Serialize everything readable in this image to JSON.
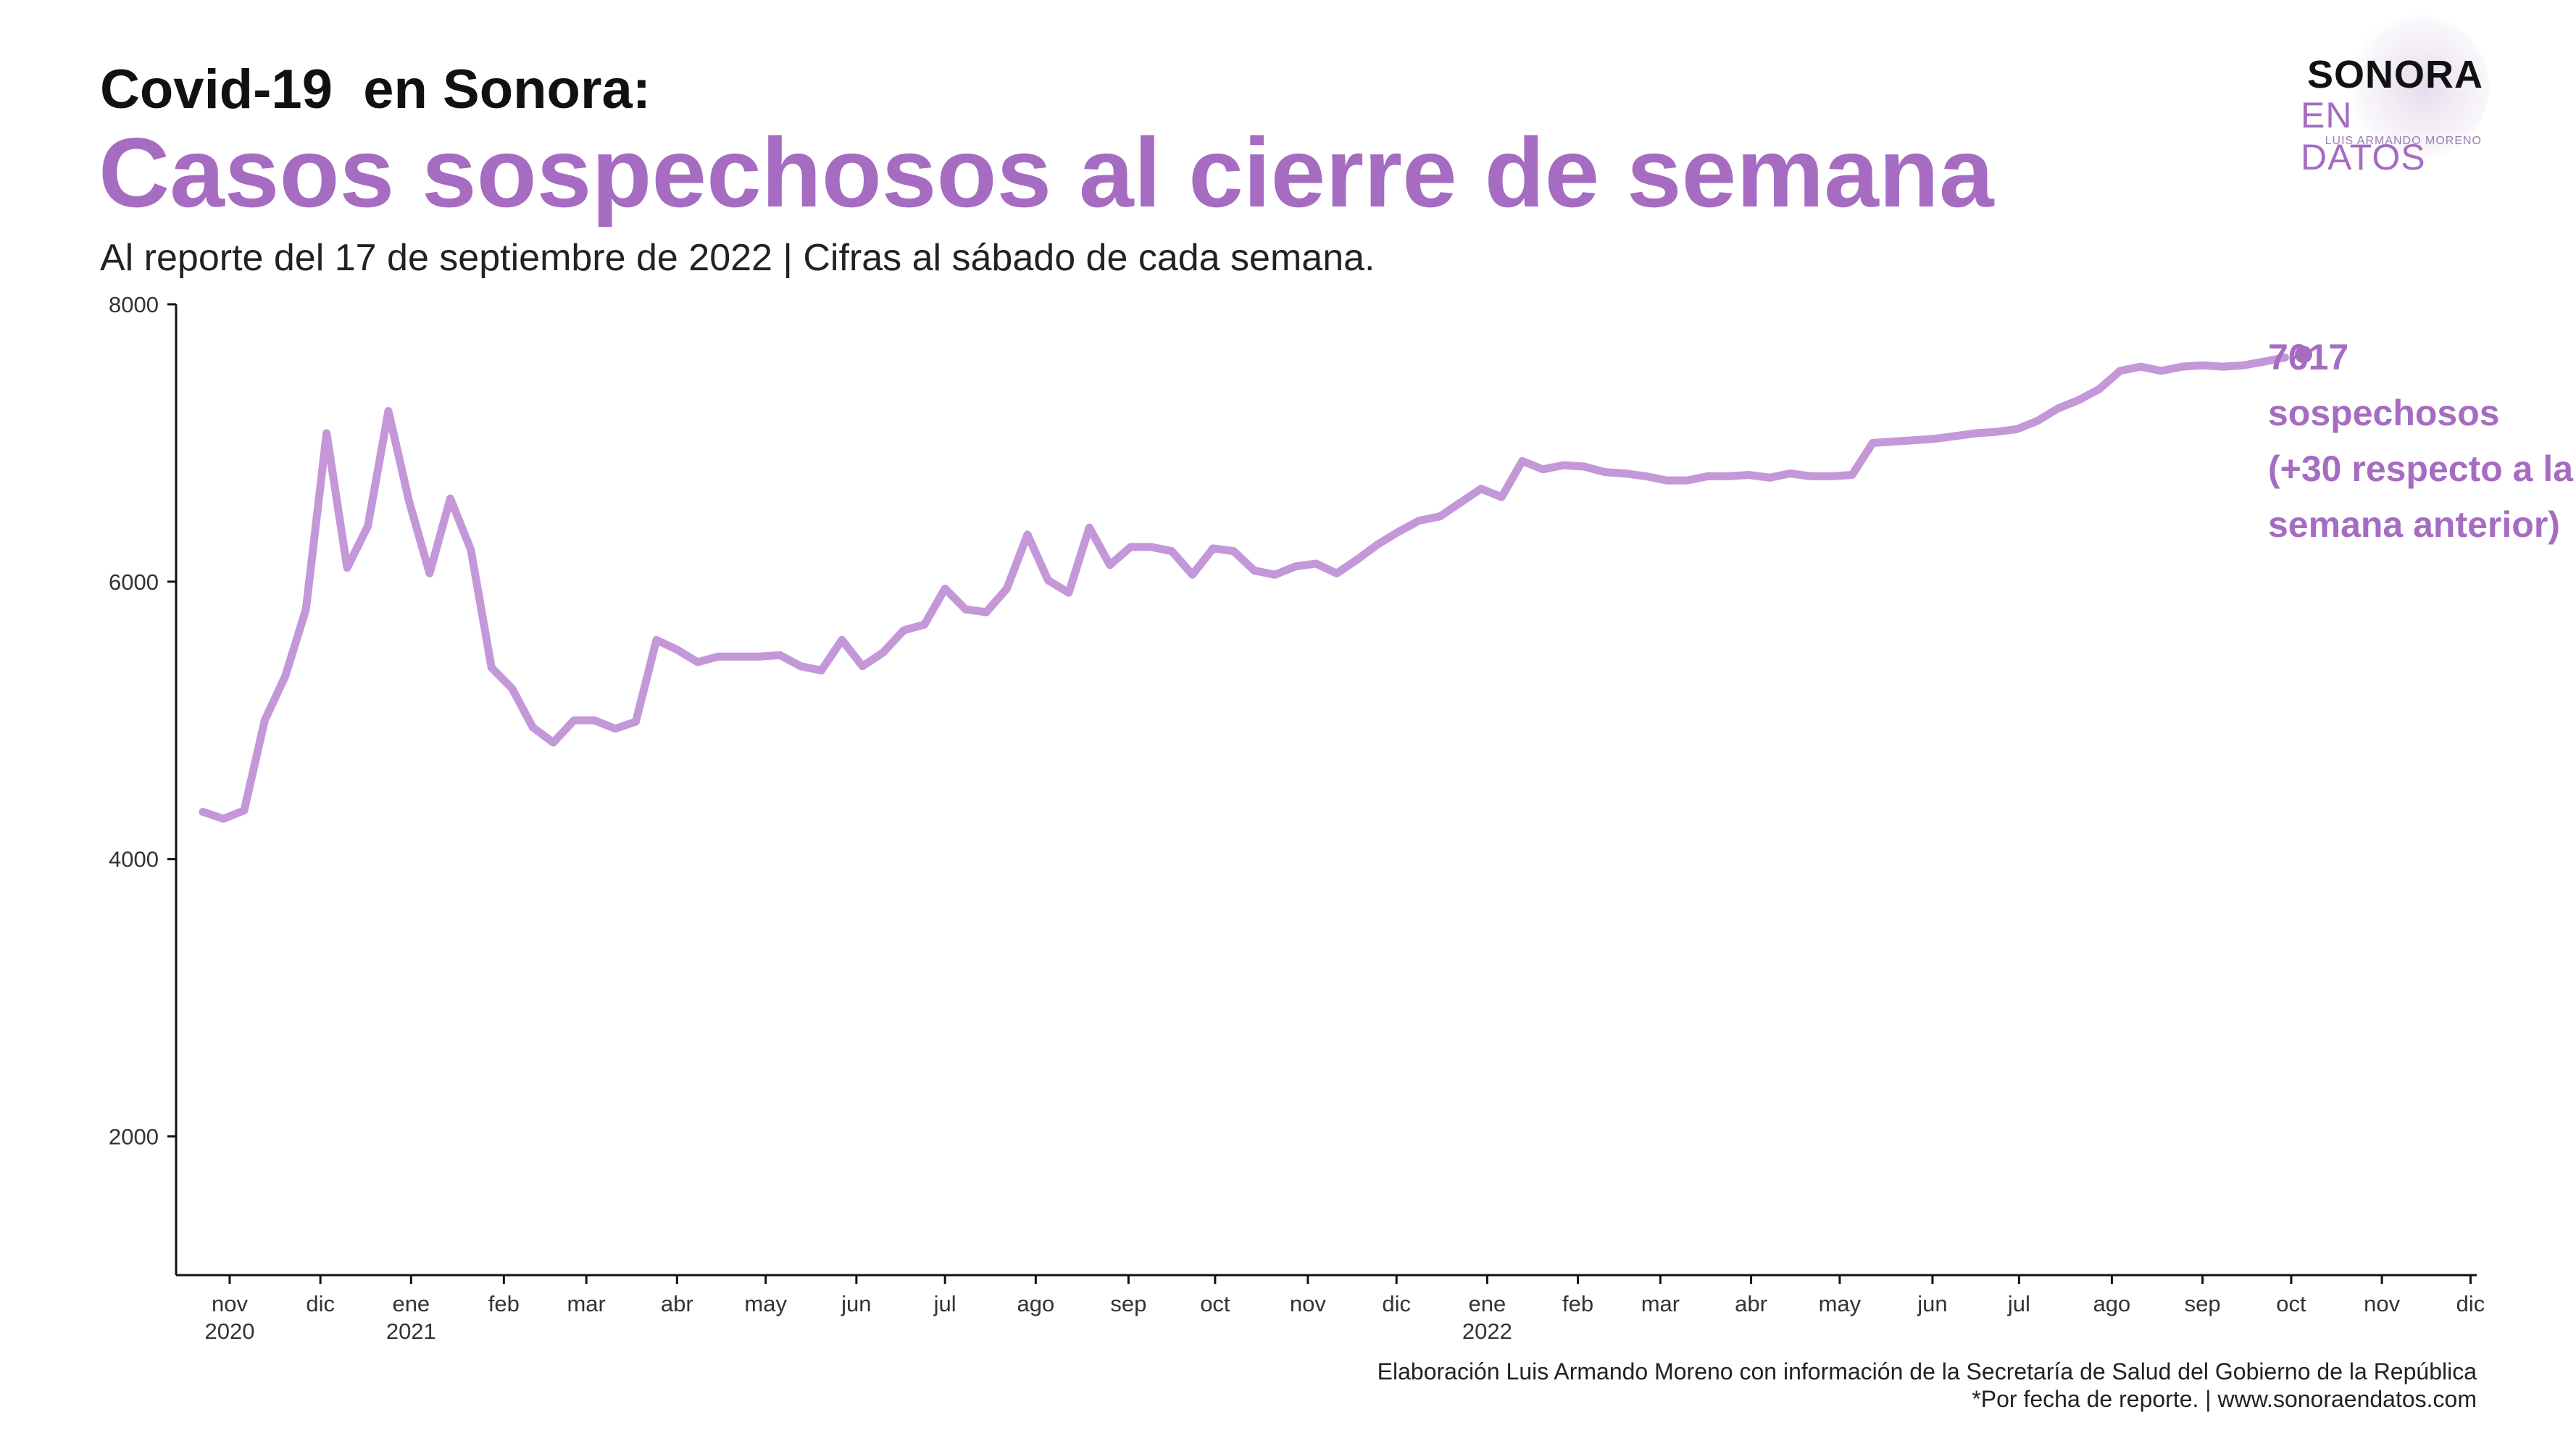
{
  "header": {
    "title_small": "Covid-19  en Sonora:",
    "title_big": "Casos sospechosos al cierre de semana",
    "subtitle": "Al reporte del 17 de septiembre de 2022  | Cifras al sábado de cada semana."
  },
  "logo": {
    "line1": "SONORA",
    "line2": "EN DATOS",
    "line3": "LUIS ARMANDO MORENO"
  },
  "footer": {
    "source_line1": "Elaboración Luis Armando Moreno con información de la Secretaría de Salud del Gobierno de la República",
    "source_line2": "*Por fecha de reporte. | www.sonoraendatos.com"
  },
  "colors": {
    "line": "#c397d8",
    "accent": "#a56cc1",
    "axis": "#111111"
  },
  "chart_data": {
    "type": "line",
    "title": "Casos sospechosos al cierre de semana",
    "xlabel": "",
    "ylabel": "",
    "ylim": [
      1000,
      8000
    ],
    "yticks": [
      2000,
      4000,
      6000,
      8000
    ],
    "xlim_week": [
      -1.3,
      110.3
    ],
    "xticks": [
      {
        "week": 1.3,
        "label": "nov",
        "year": "2020"
      },
      {
        "week": 5.7,
        "label": "dic",
        "year": ""
      },
      {
        "week": 10.1,
        "label": "ene",
        "year": "2021"
      },
      {
        "week": 14.6,
        "label": "feb",
        "year": ""
      },
      {
        "week": 18.6,
        "label": "mar",
        "year": ""
      },
      {
        "week": 23.0,
        "label": "abr",
        "year": ""
      },
      {
        "week": 27.3,
        "label": "may",
        "year": ""
      },
      {
        "week": 31.7,
        "label": "jun",
        "year": ""
      },
      {
        "week": 36.0,
        "label": "jul",
        "year": ""
      },
      {
        "week": 40.4,
        "label": "ago",
        "year": ""
      },
      {
        "week": 44.9,
        "label": "sep",
        "year": ""
      },
      {
        "week": 49.1,
        "label": "oct",
        "year": ""
      },
      {
        "week": 53.6,
        "label": "nov",
        "year": ""
      },
      {
        "week": 57.9,
        "label": "dic",
        "year": ""
      },
      {
        "week": 62.3,
        "label": "ene",
        "year": "2022"
      },
      {
        "week": 66.7,
        "label": "feb",
        "year": ""
      },
      {
        "week": 70.7,
        "label": "mar",
        "year": ""
      },
      {
        "week": 75.1,
        "label": "abr",
        "year": ""
      },
      {
        "week": 79.4,
        "label": "may",
        "year": ""
      },
      {
        "week": 83.9,
        "label": "jun",
        "year": ""
      },
      {
        "week": 88.1,
        "label": "jul",
        "year": ""
      },
      {
        "week": 92.6,
        "label": "ago",
        "year": ""
      },
      {
        "week": 97.0,
        "label": "sep",
        "year": ""
      },
      {
        "week": 101.3,
        "label": "oct",
        "year": ""
      },
      {
        "week": 105.7,
        "label": "nov",
        "year": ""
      },
      {
        "week": 110.0,
        "label": "dic",
        "year": ""
      }
    ],
    "series": [
      {
        "name": "Casos sospechosos",
        "first_week_date": "2020-10-24",
        "values": [
          4340,
          4290,
          4350,
          5000,
          5320,
          5800,
          7070,
          6100,
          6400,
          7230,
          6580,
          6060,
          6600,
          6230,
          5380,
          5230,
          4950,
          4840,
          5000,
          5000,
          4940,
          4990,
          5580,
          5510,
          5420,
          5460,
          5460,
          5460,
          5470,
          5390,
          5360,
          5580,
          5390,
          5490,
          5650,
          5690,
          5950,
          5800,
          5780,
          5950,
          6340,
          6010,
          5920,
          6390,
          6120,
          6250,
          6250,
          6220,
          6050,
          6240,
          6220,
          6080,
          6050,
          6110,
          6130,
          6060,
          6160,
          6270,
          6360,
          6440,
          6470,
          6570,
          6670,
          6610,
          6870,
          6810,
          6840,
          6830,
          6790,
          6780,
          6760,
          6730,
          6730,
          6760,
          6760,
          6770,
          6750,
          6780,
          6760,
          6760,
          6770,
          7000,
          7010,
          7020,
          7030,
          7050,
          7070,
          7080,
          7100,
          7160,
          7250,
          7310,
          7390,
          7520,
          7550,
          7520,
          7550,
          7560,
          7550,
          7560,
          7587,
          7617
        ]
      }
    ],
    "last_point": {
      "value": 7617,
      "label_lines": [
        "7617",
        "sospechosos",
        "(+30 respecto a la",
        "semana anterior)"
      ]
    }
  }
}
